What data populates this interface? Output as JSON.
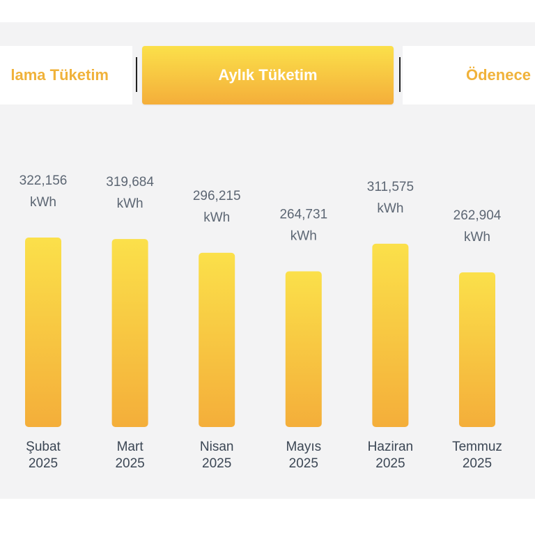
{
  "tabs": [
    {
      "label": "lama Tüketim"
    },
    {
      "label": "Aylık Tüketim"
    },
    {
      "label": "Ödenece"
    }
  ],
  "colors": {
    "bar_top": "#fbe04a",
    "bar_bottom": "#f4ae3a",
    "tab_text": "#f0b23a"
  },
  "chart_data": {
    "type": "bar",
    "title": "Aylık Tüketim",
    "unit": "kWh",
    "categories": [
      {
        "month": "Şubat",
        "year": "2025"
      },
      {
        "month": "Mart",
        "year": "2025"
      },
      {
        "month": "Nisan",
        "year": "2025"
      },
      {
        "month": "Mayıs",
        "year": "2025"
      },
      {
        "month": "Haziran",
        "year": "2025"
      },
      {
        "month": "Temmuz",
        "year": "2025"
      }
    ],
    "values": [
      322156,
      319684,
      296215,
      264731,
      311575,
      262904
    ],
    "labels": [
      "322,156",
      "319,684",
      "296,215",
      "264,731",
      "311,575",
      "262,904"
    ],
    "ylim": [
      0,
      322156
    ],
    "grid": false,
    "legend": "none"
  }
}
